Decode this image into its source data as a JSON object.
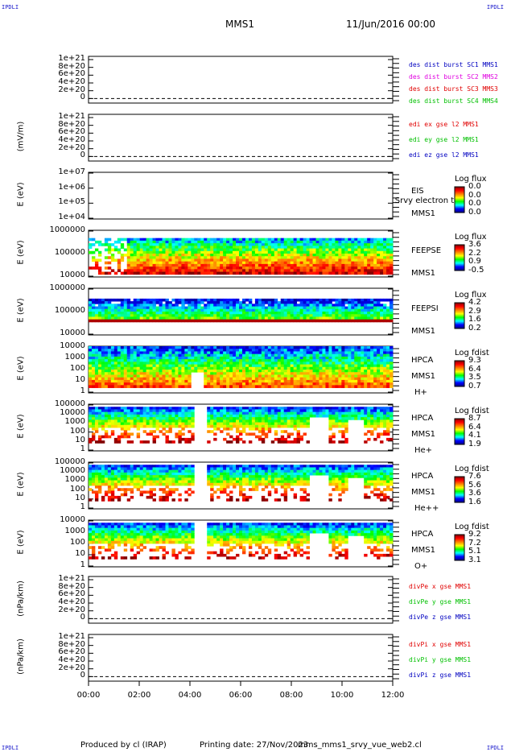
{
  "corner": {
    "tl": "IPDLI",
    "tr": "IPDLI",
    "bl": "IPDLI",
    "br": "IPDLI"
  },
  "header": {
    "mission": "MMS1",
    "date": "11/Jun/2016 00:00"
  },
  "footer": {
    "produced": "Produced by cl (IRAP)",
    "printing": "Printing date: 27/Nov/2023",
    "script": "mms_mms1_srvy_vue_web2.cl"
  },
  "colors": {
    "red": "#e00000",
    "magenta": "#e000e0",
    "green": "#00c000",
    "blue": "#0000c0",
    "cbar_stops": [
      "#000080",
      "#0000ff",
      "#00ffff",
      "#00ff00",
      "#ffff00",
      "#ff8000",
      "#ff0000",
      "#800000"
    ]
  },
  "chart_data": [
    {
      "type": "line",
      "panel": "des",
      "ylabel": "",
      "yticks": [
        "1e+21",
        "8e+20",
        "6e+20",
        "4e+20",
        "2e+20",
        "0"
      ],
      "series": [
        {
          "name": "des dist burst SC1 MMS1",
          "color": "blue"
        },
        {
          "name": "des dist burst SC2 MMS2",
          "color": "magenta"
        },
        {
          "name": "des dist burst SC3 MMS3",
          "color": "red"
        },
        {
          "name": "des dist burst SC4 MMS4",
          "color": "green"
        }
      ]
    },
    {
      "type": "line",
      "panel": "edi",
      "ylabel": "(mV/m)",
      "yticks": [
        "1e+21",
        "8e+20",
        "6e+20",
        "4e+20",
        "2e+20",
        "0"
      ],
      "series": [
        {
          "name": "edi ex gse l2 MMS1",
          "color": "red"
        },
        {
          "name": "edi ey gse l2 MMS1",
          "color": "green"
        },
        {
          "name": "edi ez gse l2 MMS1",
          "color": "blue"
        }
      ]
    },
    {
      "type": "heatmap",
      "panel": "eis",
      "ylabel": "E (eV)",
      "yticks": [
        "1e+07",
        "1e+06",
        "1e+05",
        "1e+04"
      ],
      "instrument": [
        "EIS",
        "MMS1"
      ],
      "overlay": "L Srvy electron to",
      "cbar_title": "Log flux",
      "cbar_ticks": [
        "0.0",
        "0.0",
        "0.0",
        "0.0"
      ]
    },
    {
      "type": "heatmap",
      "panel": "feepse",
      "ylabel": "E (eV)",
      "yticks": [
        "1000000",
        "100000",
        "10000"
      ],
      "instrument": [
        "FEEPSE",
        "MMS1"
      ],
      "cbar_title": "Log flux",
      "cbar_ticks": [
        "3.6",
        "2.2",
        "0.9",
        "-0.5"
      ]
    },
    {
      "type": "heatmap",
      "panel": "feepsi",
      "ylabel": "E (eV)",
      "yticks": [
        "1000000",
        "100000",
        "10000"
      ],
      "instrument": [
        "FEEPSI",
        "MMS1"
      ],
      "cbar_title": "Log flux",
      "cbar_ticks": [
        "4.2",
        "2.9",
        "1.6",
        "0.2"
      ]
    },
    {
      "type": "heatmap",
      "panel": "hpca_h",
      "ylabel": "E (eV)",
      "yticks": [
        "10000",
        "1000",
        "100",
        "10",
        "1"
      ],
      "instrument": [
        "HPCA",
        "MMS1",
        "H+"
      ],
      "cbar_title": "Log fdist",
      "cbar_ticks": [
        "9.3",
        "6.4",
        "3.5",
        "0.7"
      ]
    },
    {
      "type": "heatmap",
      "panel": "hpca_he",
      "ylabel": "E (eV)",
      "yticks": [
        "100000",
        "10000",
        "1000",
        "100",
        "10",
        "1"
      ],
      "instrument": [
        "HPCA",
        "MMS1",
        "He+"
      ],
      "cbar_title": "Log fdist",
      "cbar_ticks": [
        "8.7",
        "6.4",
        "4.1",
        "1.9"
      ]
    },
    {
      "type": "heatmap",
      "panel": "hpca_hepp",
      "ylabel": "E (eV)",
      "yticks": [
        "100000",
        "10000",
        "1000",
        "100",
        "10",
        "1"
      ],
      "instrument": [
        "HPCA",
        "MMS1",
        "He++"
      ],
      "cbar_title": "Log fdist",
      "cbar_ticks": [
        "7.6",
        "5.6",
        "3.6",
        "1.6"
      ]
    },
    {
      "type": "heatmap",
      "panel": "hpca_o",
      "ylabel": "E (eV)",
      "yticks": [
        "10000",
        "1000",
        "100",
        "10",
        "1"
      ],
      "instrument": [
        "HPCA",
        "MMS1",
        "O+"
      ],
      "cbar_title": "Log fdist",
      "cbar_ticks": [
        "9.2",
        "7.2",
        "5.1",
        "3.1"
      ]
    },
    {
      "type": "line",
      "panel": "divpe",
      "ylabel": "(nPa/km)",
      "yticks": [
        "1e+21",
        "8e+20",
        "6e+20",
        "4e+20",
        "2e+20",
        "0"
      ],
      "series": [
        {
          "name": "divPe x gse MMS1",
          "color": "red"
        },
        {
          "name": "divPe y gse MMS1",
          "color": "green"
        },
        {
          "name": "divPe z gse MMS1",
          "color": "blue"
        }
      ]
    },
    {
      "type": "line",
      "panel": "divpi",
      "ylabel": "(nPa/km)",
      "yticks": [
        "1e+21",
        "8e+20",
        "6e+20",
        "4e+20",
        "2e+20",
        "0"
      ],
      "series": [
        {
          "name": "divPi x gse MMS1",
          "color": "red"
        },
        {
          "name": "divPi y gse MMS1",
          "color": "green"
        },
        {
          "name": "divPi z gse MMS1",
          "color": "blue"
        }
      ]
    }
  ],
  "xaxis": {
    "ticks": [
      "00:00",
      "02:00",
      "04:00",
      "06:00",
      "08:00",
      "10:00",
      "12:00"
    ],
    "range_hours": [
      0,
      12
    ]
  }
}
